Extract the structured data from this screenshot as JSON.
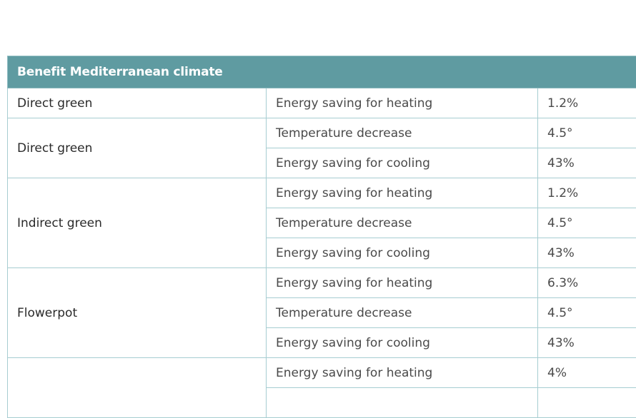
{
  "table": {
    "header": "Benefit Mediterranean climate",
    "groups": [
      {
        "name": "Direct green",
        "rows": [
          {
            "metric": "Energy saving for heating",
            "value": "1.2%"
          }
        ]
      },
      {
        "name": "Direct green",
        "rows": [
          {
            "metric": "Temperature decrease",
            "value": "4.5°"
          },
          {
            "metric": "Energy saving for cooling",
            "value": "43%"
          }
        ]
      },
      {
        "name": "Indirect green",
        "rows": [
          {
            "metric": "Energy saving for heating",
            "value": "1.2%"
          },
          {
            "metric": "Temperature decrease",
            "value": "4.5°"
          },
          {
            "metric": "Energy saving for cooling",
            "value": "43%"
          }
        ]
      },
      {
        "name": "Flowerpot",
        "rows": [
          {
            "metric": "Energy saving for heating",
            "value": "6.3%"
          },
          {
            "metric": "Temperature decrease",
            "value": "4.5°"
          },
          {
            "metric": "Energy saving for cooling",
            "value": "43%"
          }
        ]
      },
      {
        "name": "",
        "rows": [
          {
            "metric": "Energy saving for heating",
            "value": "4%"
          }
        ]
      }
    ]
  }
}
